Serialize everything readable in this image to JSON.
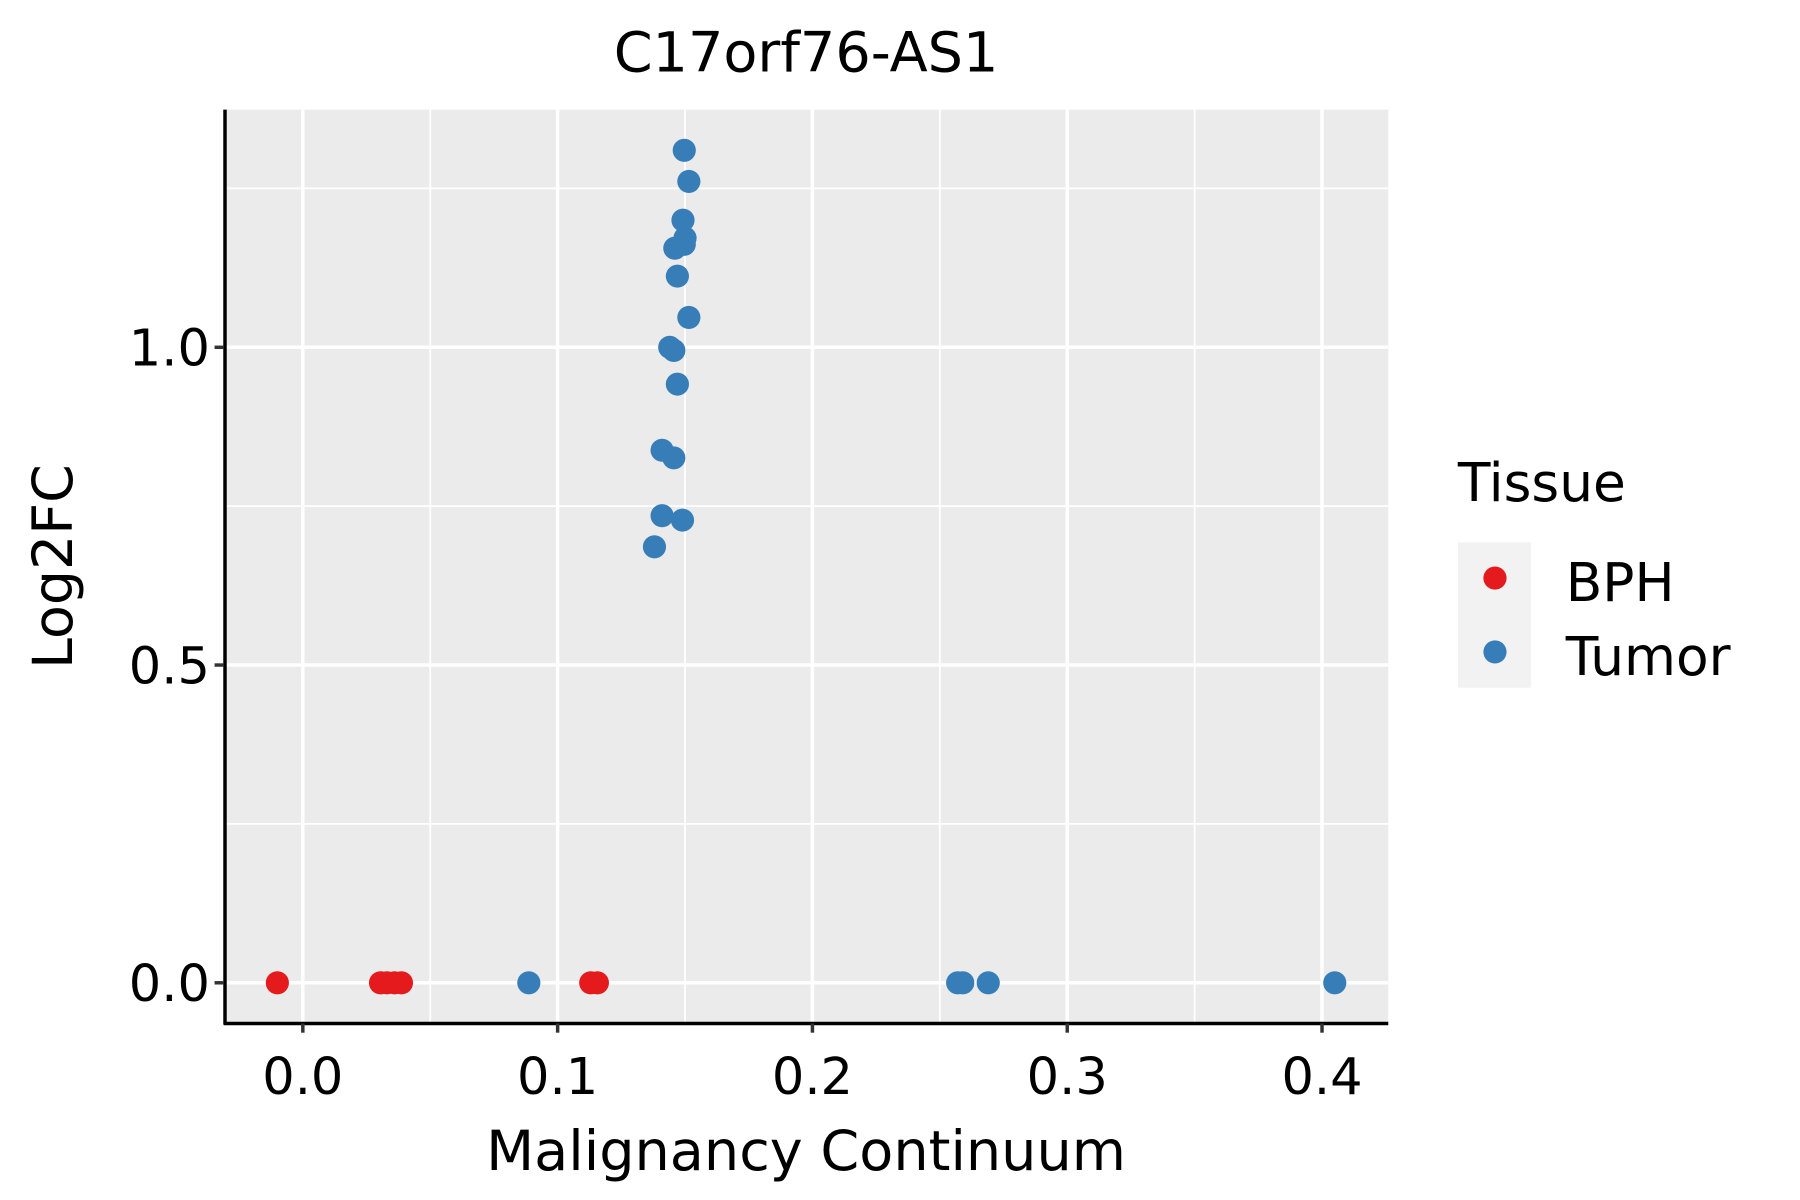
{
  "chart_data": {
    "type": "scatter",
    "title": "C17orf76-AS1",
    "xlabel": "Malignancy Continuum",
    "ylabel": "Log2FC",
    "xlim": [
      -0.031,
      0.426
    ],
    "ylim": [
      -0.064,
      1.374
    ],
    "xticks": [
      0.0,
      0.1,
      0.2,
      0.3,
      0.4
    ],
    "xtick_labels": [
      "0.0",
      "0.1",
      "0.2",
      "0.3",
      "0.4"
    ],
    "xminor": [
      0.05,
      0.15,
      0.25,
      0.35
    ],
    "yticks": [
      0.0,
      0.5,
      1.0
    ],
    "ytick_labels": [
      "0.0",
      "0.5",
      "1.0"
    ],
    "yminor": [
      0.25,
      0.75,
      1.25
    ],
    "grid": true,
    "legend": {
      "title": "Tissue",
      "placement": "right"
    },
    "series": [
      {
        "name": "BPH",
        "color": "#E41A1C",
        "x": [
          -0.01,
          0.0305,
          0.033,
          0.036,
          0.0387,
          0.113,
          0.1156
        ],
        "y": [
          0,
          0,
          0,
          0,
          0,
          0,
          0
        ]
      },
      {
        "name": "Tumor",
        "color": "#377EB8",
        "x": [
          0.1497,
          0.1515,
          0.1492,
          0.15,
          0.1497,
          0.146,
          0.147,
          0.1515,
          0.144,
          0.1456,
          0.147,
          0.141,
          0.1456,
          0.141,
          0.149,
          0.138,
          0.0887,
          0.257,
          0.259,
          0.269,
          0.405
        ],
        "y": [
          1.31,
          1.261,
          1.2,
          1.172,
          1.162,
          1.156,
          1.112,
          1.047,
          1.0,
          0.995,
          0.942,
          0.838,
          0.826,
          0.735,
          0.728,
          0.686,
          0,
          0,
          0,
          0,
          0
        ]
      }
    ]
  }
}
